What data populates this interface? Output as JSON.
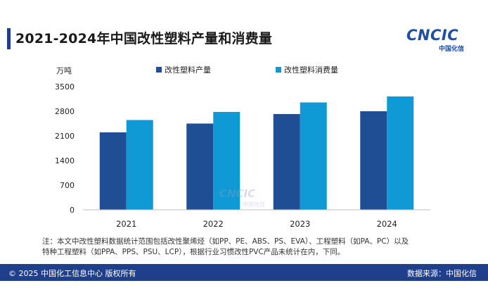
{
  "header": {
    "title": "2021-2024年中国改性塑料产量和消费量"
  },
  "logo": {
    "text": "CNCIC",
    "sub": "中国化信"
  },
  "chart_data": {
    "type": "bar",
    "title": "2021-2024年中国改性塑料产量和消费量",
    "ylabel": "万吨",
    "xlabel": "",
    "categories": [
      "2021",
      "2022",
      "2023",
      "2024"
    ],
    "series": [
      {
        "name": "改性塑料产量",
        "values": [
          2200,
          2450,
          2720,
          2800
        ],
        "color": "#1f4e94"
      },
      {
        "name": "改性塑料消费量",
        "values": [
          2550,
          2780,
          3050,
          3220
        ],
        "color": "#0f9ad6"
      }
    ],
    "ylim": [
      0,
      3500
    ],
    "yticks": [
      0,
      700,
      1400,
      2100,
      2800,
      3500
    ],
    "legend": "top",
    "grid": false
  },
  "note": {
    "line1": "注：本文中改性塑料数据统计范围包括改性聚烯烃（如PP、PE、ABS、PS、EVA）、工程塑料（如PA、PC）以及",
    "line2": "特种工程塑料（如PPA、PPS、PSU、LCP），根据行业习惯改性PVC产品未统计在内，下同。"
  },
  "footer": {
    "copyright": "© 2025 中国化工信息中心  版权所有",
    "source": "数据来源：中国化信"
  }
}
